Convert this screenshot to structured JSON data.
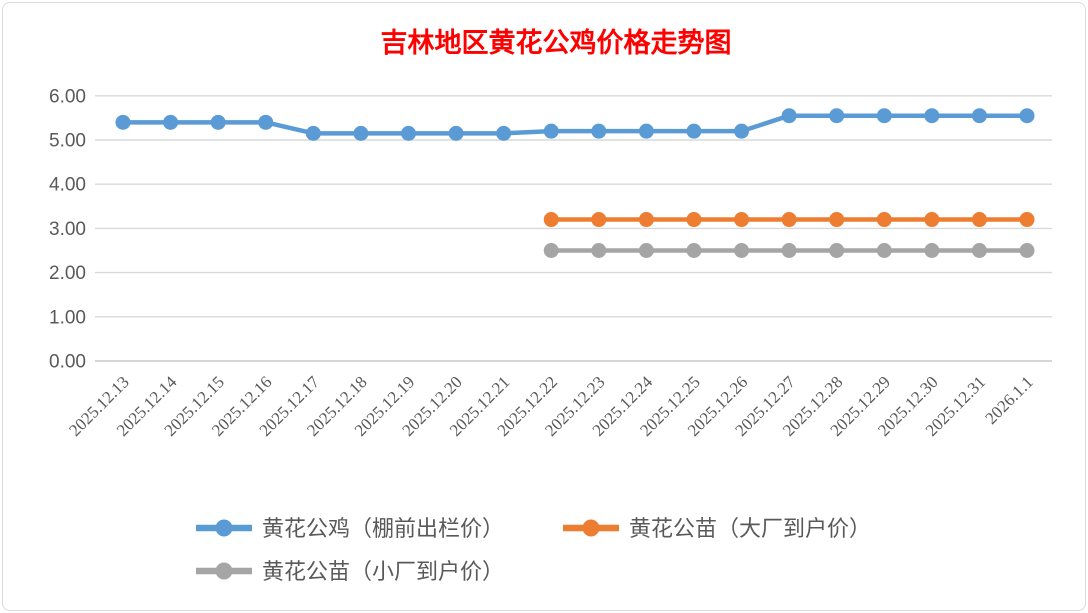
{
  "chart_data": {
    "type": "line",
    "title": "吉林地区黄花公鸡价格走势图",
    "title_color": "#FF0000",
    "categories": [
      "2025.12.13",
      "2025.12.14",
      "2025.12.15",
      "2025.12.16",
      "2025.12.17",
      "2025.12.18",
      "2025.12.19",
      "2025.12.20",
      "2025.12.21",
      "2025.12.22",
      "2025.12.23",
      "2025.12.24",
      "2025.12.25",
      "2025.12.26",
      "2025.12.27",
      "2025.12.28",
      "2025.12.29",
      "2025.12.30",
      "2025.12.31",
      "2026.1.1"
    ],
    "series": [
      {
        "name": "黄花公鸡（棚前出栏价）",
        "color": "#5B9BD5",
        "values": [
          5.4,
          5.4,
          5.4,
          5.4,
          5.15,
          5.15,
          5.15,
          5.15,
          5.15,
          5.2,
          5.2,
          5.2,
          5.2,
          5.2,
          5.55,
          5.55,
          5.55,
          5.55,
          5.55,
          5.55
        ]
      },
      {
        "name": "黄花公苗（大厂到户价）",
        "color": "#ED7D31",
        "values": [
          null,
          null,
          null,
          null,
          null,
          null,
          null,
          null,
          null,
          3.2,
          3.2,
          3.2,
          3.2,
          3.2,
          3.2,
          3.2,
          3.2,
          3.2,
          3.2,
          3.2
        ]
      },
      {
        "name": "黄花公苗（小厂到户价）",
        "color": "#A5A5A5",
        "values": [
          null,
          null,
          null,
          null,
          null,
          null,
          null,
          null,
          null,
          2.5,
          2.5,
          2.5,
          2.5,
          2.5,
          2.5,
          2.5,
          2.5,
          2.5,
          2.5,
          2.5
        ]
      }
    ],
    "y_axis": {
      "min": 0,
      "max": 6,
      "step": 1,
      "tick_labels": [
        "0.00",
        "1.00",
        "2.00",
        "3.00",
        "4.00",
        "5.00",
        "6.00"
      ]
    },
    "grid": true,
    "legend_position": "bottom",
    "colors": {
      "axis_label": "#595959",
      "gridline": "#D9D9D9",
      "baseline": "#C9C9C9",
      "legend_text": "#595959"
    }
  }
}
